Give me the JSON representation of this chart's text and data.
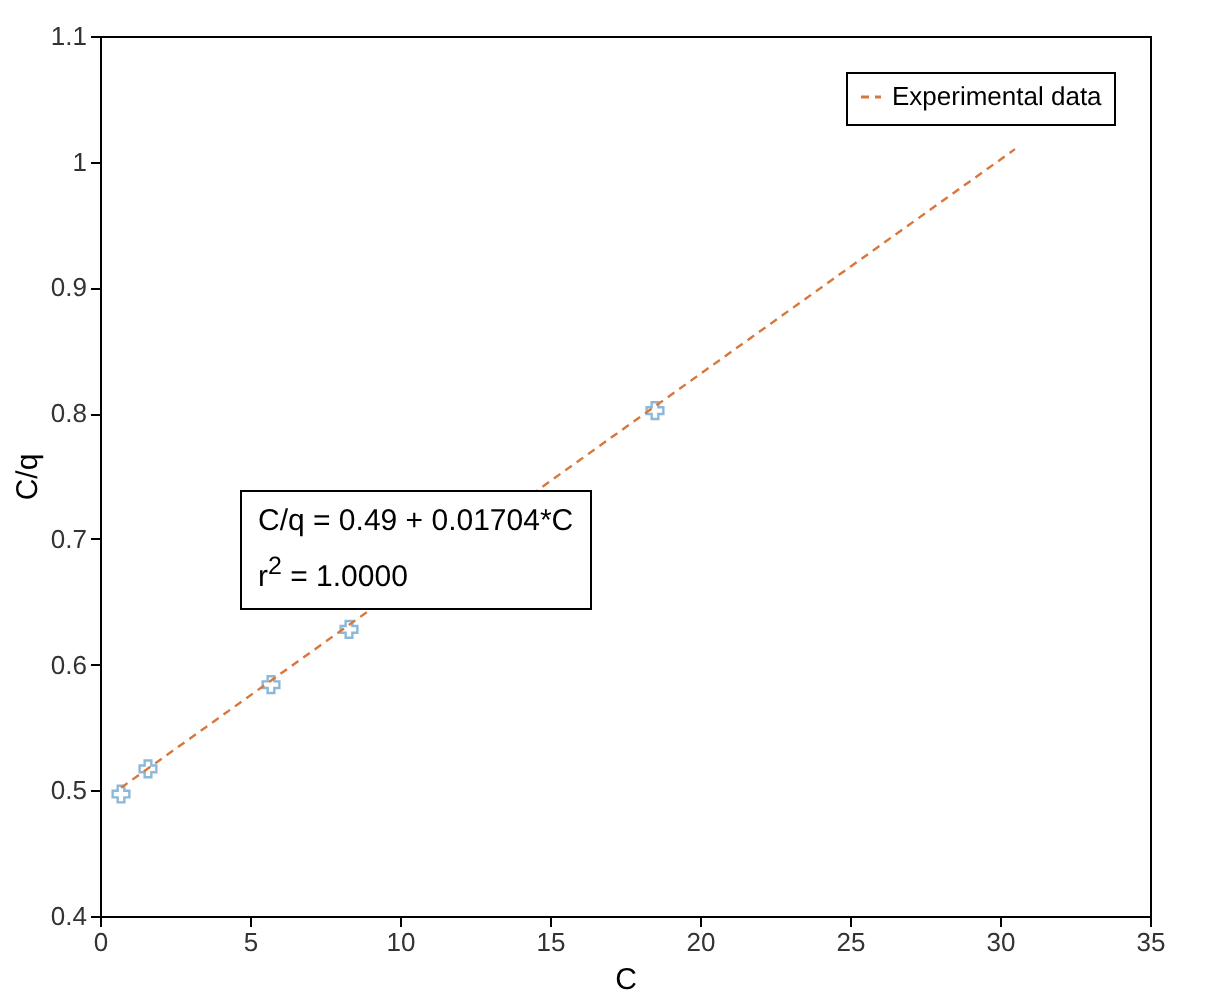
{
  "chart_data": {
    "type": "scatter",
    "xlabel": "C",
    "ylabel": "C/q",
    "xlim": [
      0,
      35
    ],
    "xticks": [
      0,
      5,
      10,
      15,
      20,
      25,
      30,
      35
    ],
    "ylim": [
      0.4,
      1.1
    ],
    "yticks": [
      0.4,
      0.5,
      0.6,
      0.7,
      0.8,
      0.9,
      1,
      1.1
    ],
    "grid": false,
    "legend": "top right",
    "series": [
      {
        "color": "#5b9bc8",
        "marker": "cross",
        "x": [
          0.7,
          1.6,
          5.7,
          8.3,
          18.5
        ],
        "values": [
          0.497,
          0.517,
          0.584,
          0.628,
          0.802
        ]
      },
      {
        "type": "line",
        "name": "Experimental data",
        "color": "#d9773a",
        "line_style": "dashed",
        "x": [
          0.7,
          30.5
        ],
        "values": [
          0.502,
          1.01
        ]
      }
    ],
    "annotations": [
      "C/q = 0.49 + 0.01704*C",
      "r$^{2}$ = 1.0000"
    ]
  }
}
